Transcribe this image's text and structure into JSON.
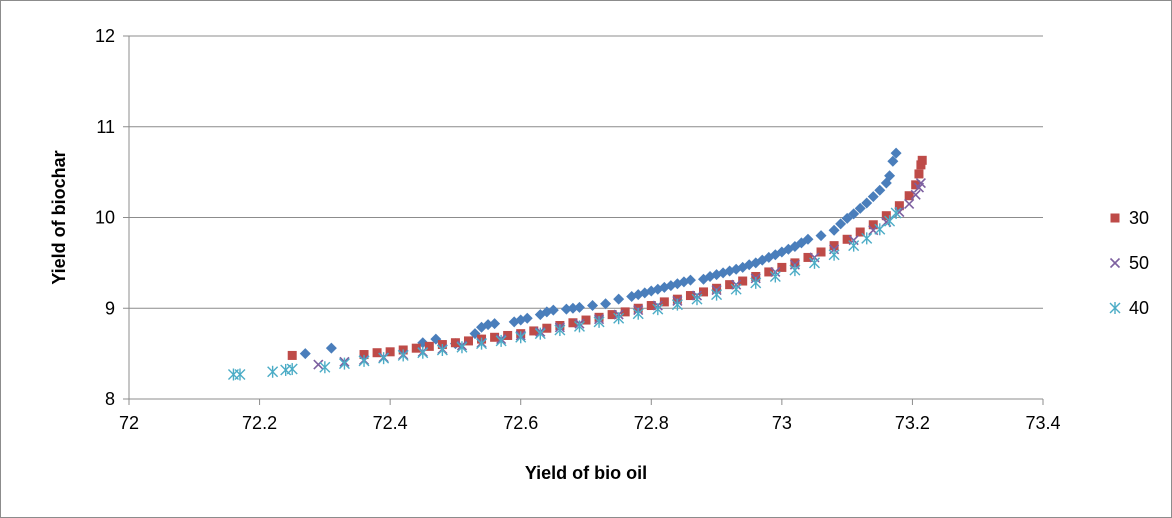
{
  "chart_data": {
    "type": "scatter",
    "xlabel": "Yield of bio oil",
    "ylabel": "Yield of biochar",
    "xlim": [
      72,
      73.4
    ],
    "ylim": [
      8,
      12
    ],
    "xticks": [
      "72",
      "72.2",
      "72.4",
      "72.6",
      "72.8",
      "73",
      "73.2",
      "73.4"
    ],
    "yticks": [
      "8",
      "9",
      "10",
      "11",
      "12"
    ],
    "grid": "horizontal",
    "legend_position": "right",
    "series": [
      {
        "name": "",
        "marker": "diamond",
        "color": "#4a7ebb",
        "points": [
          [
            72.27,
            8.5
          ],
          [
            72.31,
            8.56
          ],
          [
            72.45,
            8.62
          ],
          [
            72.47,
            8.66
          ],
          [
            72.5,
            8.61
          ],
          [
            72.53,
            8.72
          ],
          [
            72.54,
            8.79
          ],
          [
            72.55,
            8.82
          ],
          [
            72.56,
            8.83
          ],
          [
            72.59,
            8.85
          ],
          [
            72.6,
            8.87
          ],
          [
            72.61,
            8.89
          ],
          [
            72.63,
            8.93
          ],
          [
            72.64,
            8.96
          ],
          [
            72.65,
            8.98
          ],
          [
            72.67,
            8.99
          ],
          [
            72.68,
            9.0
          ],
          [
            72.69,
            9.01
          ],
          [
            72.71,
            9.03
          ],
          [
            72.73,
            9.05
          ],
          [
            72.75,
            9.1
          ],
          [
            72.77,
            9.13
          ],
          [
            72.78,
            9.15
          ],
          [
            72.79,
            9.17
          ],
          [
            72.8,
            9.19
          ],
          [
            72.81,
            9.21
          ],
          [
            72.82,
            9.23
          ],
          [
            72.83,
            9.25
          ],
          [
            72.84,
            9.27
          ],
          [
            72.85,
            9.29
          ],
          [
            72.86,
            9.31
          ],
          [
            72.88,
            9.32
          ],
          [
            72.89,
            9.35
          ],
          [
            72.9,
            9.37
          ],
          [
            72.91,
            9.39
          ],
          [
            72.92,
            9.41
          ],
          [
            72.93,
            9.43
          ],
          [
            72.94,
            9.45
          ],
          [
            72.95,
            9.48
          ],
          [
            72.96,
            9.5
          ],
          [
            72.97,
            9.53
          ],
          [
            72.98,
            9.56
          ],
          [
            72.99,
            9.59
          ],
          [
            73.0,
            9.62
          ],
          [
            73.01,
            9.65
          ],
          [
            73.02,
            9.68
          ],
          [
            73.03,
            9.72
          ],
          [
            73.04,
            9.76
          ],
          [
            73.06,
            9.8
          ],
          [
            73.08,
            9.86
          ],
          [
            73.09,
            9.93
          ],
          [
            73.1,
            9.99
          ],
          [
            73.11,
            10.04
          ],
          [
            73.12,
            10.1
          ],
          [
            73.13,
            10.16
          ],
          [
            73.14,
            10.23
          ],
          [
            73.15,
            10.3
          ],
          [
            73.16,
            10.38
          ],
          [
            73.165,
            10.46
          ],
          [
            73.17,
            10.62
          ],
          [
            73.175,
            10.71
          ]
        ]
      },
      {
        "name": "30",
        "marker": "square",
        "color": "#be4b48",
        "points": [
          [
            72.25,
            8.48
          ],
          [
            72.36,
            8.49
          ],
          [
            72.38,
            8.51
          ],
          [
            72.4,
            8.52
          ],
          [
            72.42,
            8.54
          ],
          [
            72.44,
            8.56
          ],
          [
            72.46,
            8.58
          ],
          [
            72.48,
            8.6
          ],
          [
            72.5,
            8.62
          ],
          [
            72.52,
            8.64
          ],
          [
            72.54,
            8.66
          ],
          [
            72.56,
            8.68
          ],
          [
            72.58,
            8.7
          ],
          [
            72.6,
            8.72
          ],
          [
            72.62,
            8.75
          ],
          [
            72.64,
            8.78
          ],
          [
            72.66,
            8.81
          ],
          [
            72.68,
            8.84
          ],
          [
            72.7,
            8.87
          ],
          [
            72.72,
            8.9
          ],
          [
            72.74,
            8.93
          ],
          [
            72.76,
            8.96
          ],
          [
            72.78,
            9.0
          ],
          [
            72.8,
            9.03
          ],
          [
            72.82,
            9.07
          ],
          [
            72.84,
            9.1
          ],
          [
            72.86,
            9.14
          ],
          [
            72.88,
            9.18
          ],
          [
            72.9,
            9.22
          ],
          [
            72.92,
            9.26
          ],
          [
            72.94,
            9.3
          ],
          [
            72.96,
            9.35
          ],
          [
            72.98,
            9.4
          ],
          [
            73.0,
            9.45
          ],
          [
            73.02,
            9.5
          ],
          [
            73.04,
            9.56
          ],
          [
            73.06,
            9.62
          ],
          [
            73.08,
            9.69
          ],
          [
            73.1,
            9.76
          ],
          [
            73.12,
            9.84
          ],
          [
            73.14,
            9.92
          ],
          [
            73.16,
            10.02
          ],
          [
            73.18,
            10.13
          ],
          [
            73.195,
            10.24
          ],
          [
            73.205,
            10.36
          ],
          [
            73.21,
            10.48
          ],
          [
            73.213,
            10.58
          ],
          [
            73.215,
            10.63
          ]
        ]
      },
      {
        "name": "50",
        "marker": "x",
        "color": "#7d60a0",
        "points": [
          [
            72.29,
            8.38
          ],
          [
            72.33,
            8.41
          ],
          [
            72.36,
            8.43
          ],
          [
            72.39,
            8.46
          ],
          [
            72.42,
            8.49
          ],
          [
            72.45,
            8.52
          ],
          [
            72.48,
            8.55
          ],
          [
            72.51,
            8.59
          ],
          [
            72.54,
            8.62
          ],
          [
            72.57,
            8.66
          ],
          [
            72.6,
            8.7
          ],
          [
            72.63,
            8.74
          ],
          [
            72.66,
            8.79
          ],
          [
            72.69,
            8.83
          ],
          [
            72.72,
            8.88
          ],
          [
            72.75,
            8.93
          ],
          [
            72.78,
            8.98
          ],
          [
            72.81,
            9.03
          ],
          [
            72.84,
            9.08
          ],
          [
            72.87,
            9.14
          ],
          [
            72.9,
            9.2
          ],
          [
            72.93,
            9.26
          ],
          [
            72.96,
            9.33
          ],
          [
            72.99,
            9.4
          ],
          [
            73.02,
            9.48
          ],
          [
            73.05,
            9.56
          ],
          [
            73.08,
            9.65
          ],
          [
            73.11,
            9.75
          ],
          [
            73.14,
            9.86
          ],
          [
            73.16,
            9.95
          ],
          [
            73.18,
            10.06
          ],
          [
            73.195,
            10.15
          ],
          [
            73.205,
            10.25
          ],
          [
            73.21,
            10.33
          ],
          [
            73.213,
            10.38
          ]
        ]
      },
      {
        "name": "40",
        "marker": "star",
        "color": "#4bacc6",
        "points": [
          [
            72.16,
            8.27
          ],
          [
            72.17,
            8.27
          ],
          [
            72.22,
            8.3
          ],
          [
            72.24,
            8.32
          ],
          [
            72.25,
            8.33
          ],
          [
            72.3,
            8.35
          ],
          [
            72.33,
            8.39
          ],
          [
            72.36,
            8.42
          ],
          [
            72.39,
            8.45
          ],
          [
            72.42,
            8.48
          ],
          [
            72.45,
            8.51
          ],
          [
            72.48,
            8.54
          ],
          [
            72.51,
            8.57
          ],
          [
            72.54,
            8.61
          ],
          [
            72.57,
            8.64
          ],
          [
            72.6,
            8.68
          ],
          [
            72.63,
            8.72
          ],
          [
            72.66,
            8.76
          ],
          [
            72.69,
            8.8
          ],
          [
            72.72,
            8.85
          ],
          [
            72.75,
            8.89
          ],
          [
            72.78,
            8.94
          ],
          [
            72.81,
            8.99
          ],
          [
            72.84,
            9.04
          ],
          [
            72.87,
            9.1
          ],
          [
            72.9,
            9.15
          ],
          [
            72.93,
            9.21
          ],
          [
            72.96,
            9.28
          ],
          [
            72.99,
            9.35
          ],
          [
            73.02,
            9.42
          ],
          [
            73.05,
            9.5
          ],
          [
            73.08,
            9.59
          ],
          [
            73.11,
            9.69
          ],
          [
            73.13,
            9.77
          ],
          [
            73.15,
            9.87
          ],
          [
            73.165,
            9.96
          ],
          [
            73.175,
            10.05
          ]
        ]
      }
    ]
  }
}
